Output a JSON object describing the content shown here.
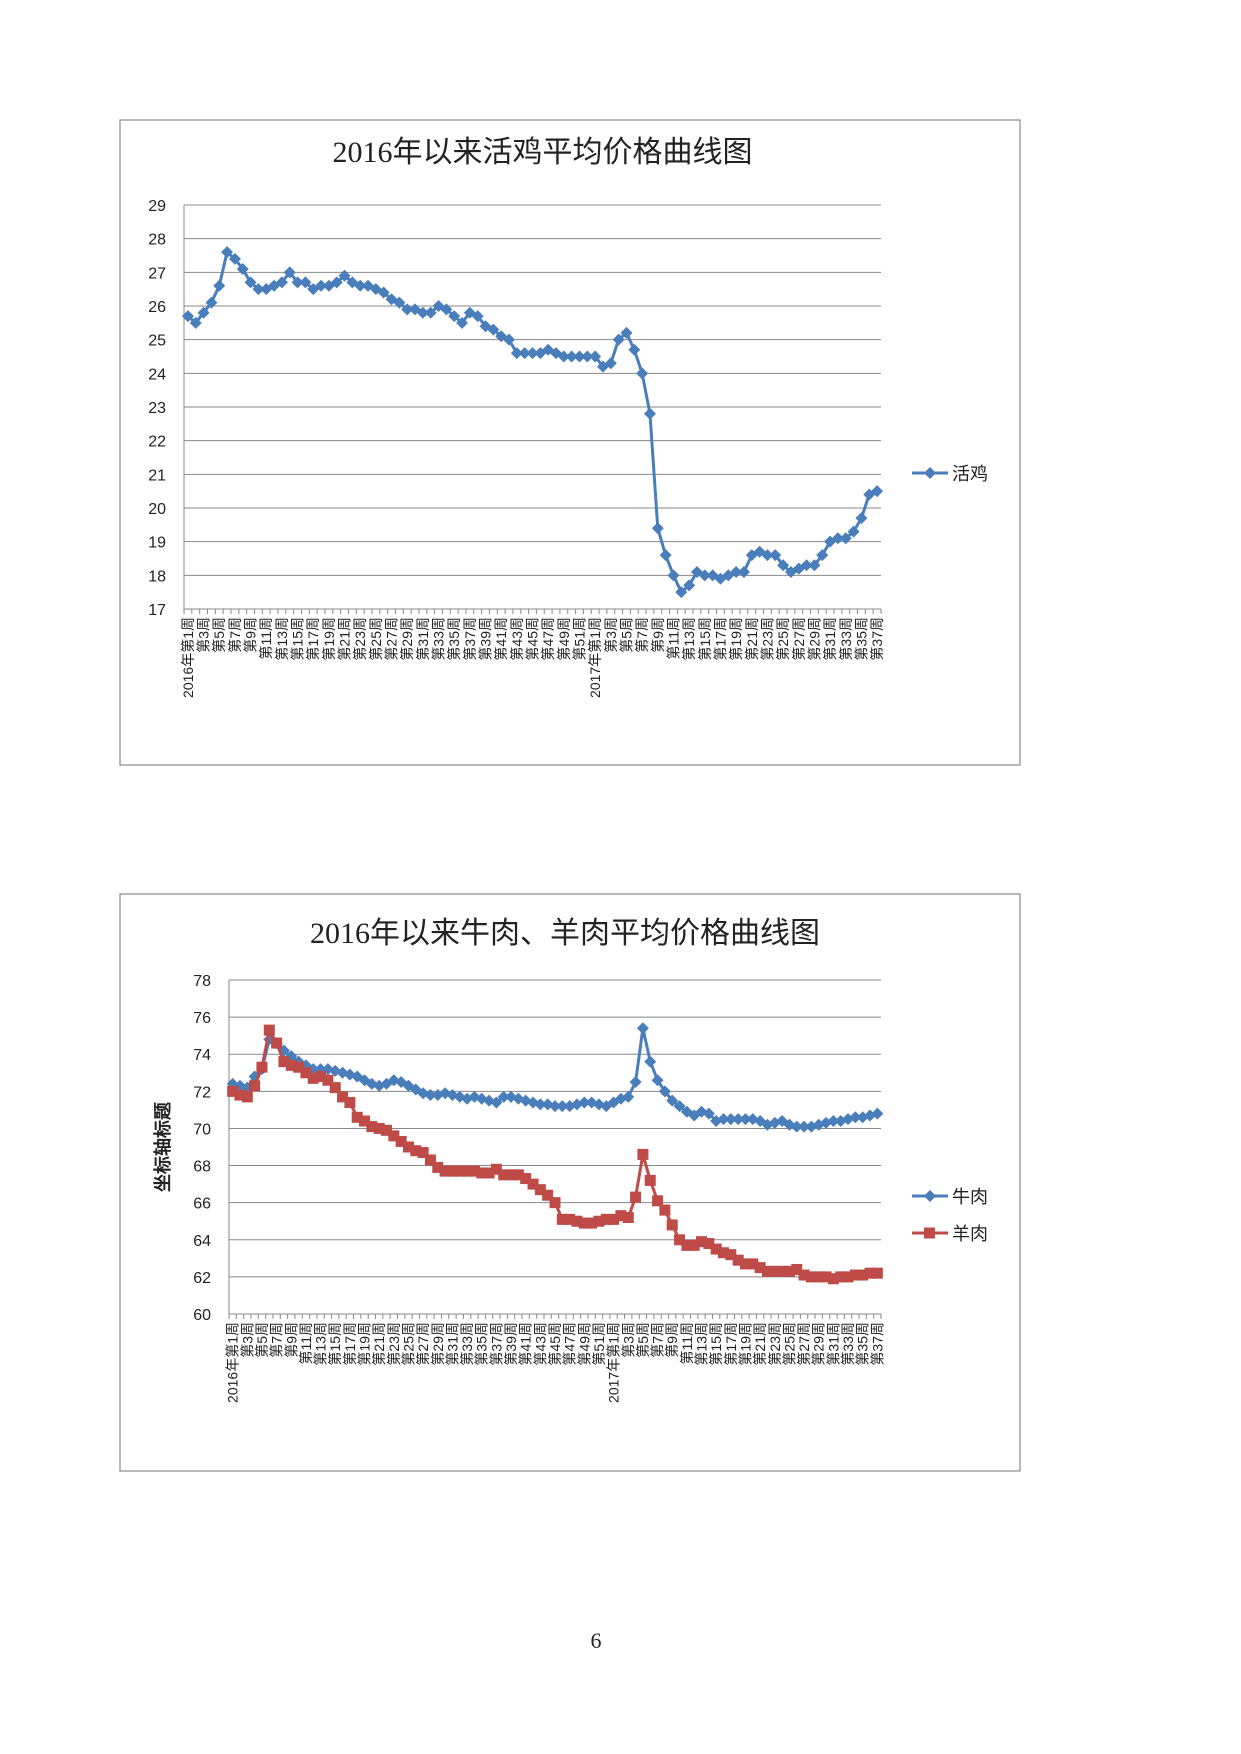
{
  "page_number": "6",
  "chart_data": [
    {
      "type": "line",
      "title": "2016年以来活鸡平均价格曲线图",
      "categories": [
        "2016年第1周",
        null,
        "第3周",
        null,
        "第5周",
        null,
        "第7周",
        null,
        "第9周",
        null,
        "第11周",
        null,
        "第13周",
        null,
        "第15周",
        null,
        "第17周",
        null,
        "第19周",
        null,
        "第21周",
        null,
        "第23周",
        null,
        "第25周",
        null,
        "第27周",
        null,
        "第29周",
        null,
        "第31周",
        null,
        "第33周",
        null,
        "第35周",
        null,
        "第37周",
        null,
        "第39周",
        null,
        "第41周",
        null,
        "第43周",
        null,
        "第45周",
        null,
        "第47周",
        null,
        "第49周",
        null,
        "第51周",
        null,
        "2017年第1周",
        null,
        "第3周",
        null,
        "第5周",
        null,
        "第7周",
        null,
        "第9周",
        null,
        "第11周",
        null,
        "第13周",
        null,
        "第15周",
        null,
        "第17周",
        null,
        "第19周",
        null,
        "第21周",
        null,
        "第23周",
        null,
        "第25周",
        null,
        "第27周",
        null,
        "第29周",
        null,
        "第31周",
        null,
        "第33周",
        null,
        "第35周",
        null,
        "第37周"
      ],
      "series": [
        {
          "name": "活鸡",
          "color": "#4a7ebb",
          "marker": "diamond",
          "values": [
            25.7,
            25.5,
            25.8,
            26.1,
            26.6,
            27.6,
            27.4,
            27.1,
            26.7,
            26.5,
            26.5,
            26.6,
            26.7,
            27.0,
            26.7,
            26.7,
            26.5,
            26.6,
            26.6,
            26.7,
            26.9,
            26.7,
            26.6,
            26.6,
            26.5,
            26.4,
            26.2,
            26.1,
            25.9,
            25.9,
            25.8,
            25.8,
            26.0,
            25.9,
            25.7,
            25.5,
            25.8,
            25.7,
            25.4,
            25.3,
            25.1,
            25.0,
            24.6,
            24.6,
            24.6,
            24.6,
            24.7,
            24.6,
            24.5,
            24.5,
            24.5,
            24.5,
            24.5,
            24.2,
            24.3,
            25.0,
            25.2,
            24.7,
            24.0,
            22.8,
            19.4,
            18.6,
            18.0,
            17.5,
            17.7,
            18.1,
            18.0,
            18.0,
            17.9,
            18.0,
            18.1,
            18.1,
            18.6,
            18.7,
            18.6,
            18.6,
            18.3,
            18.1,
            18.2,
            18.3,
            18.3,
            18.6,
            19.0,
            19.1,
            19.1,
            19.3,
            19.7,
            20.4,
            20.5
          ]
        }
      ],
      "ylim": [
        17,
        29
      ],
      "yticks": [
        17,
        18,
        19,
        20,
        21,
        22,
        23,
        24,
        25,
        26,
        27,
        28,
        29
      ],
      "grid": true,
      "legend": "right"
    },
    {
      "type": "line",
      "title": "2016年以来牛肉、羊肉平均价格曲线图",
      "y_label": "坐标轴标题",
      "categories": [
        "2016年第1周",
        null,
        "第3周",
        null,
        "第5周",
        null,
        "第7周",
        null,
        "第9周",
        null,
        "第11周",
        null,
        "第13周",
        null,
        "第15周",
        null,
        "第17周",
        null,
        "第19周",
        null,
        "第21周",
        null,
        "第23周",
        null,
        "第25周",
        null,
        "第27周",
        null,
        "第29周",
        null,
        "第31周",
        null,
        "第33周",
        null,
        "第35周",
        null,
        "第37周",
        null,
        "第39周",
        null,
        "第41周",
        null,
        "第43周",
        null,
        "第45周",
        null,
        "第47周",
        null,
        "第49周",
        null,
        "第51周",
        null,
        "2017年第1周",
        null,
        "第3周",
        null,
        "第5周",
        null,
        "第7周",
        null,
        "第9周",
        null,
        "第11周",
        null,
        "第13周",
        null,
        "第15周",
        null,
        "第17周",
        null,
        "第19周",
        null,
        "第21周",
        null,
        "第23周",
        null,
        "第25周",
        null,
        "第27周",
        null,
        "第29周",
        null,
        "第31周",
        null,
        "第33周",
        null,
        "第35周",
        null,
        "第37周"
      ],
      "series": [
        {
          "name": "牛肉",
          "color": "#4a7ebb",
          "marker": "diamond",
          "values": [
            72.4,
            72.3,
            72.2,
            72.8,
            73.2,
            74.8,
            74.6,
            74.2,
            73.9,
            73.6,
            73.4,
            73.2,
            73.2,
            73.2,
            73.1,
            73.0,
            72.9,
            72.8,
            72.6,
            72.4,
            72.3,
            72.4,
            72.6,
            72.5,
            72.3,
            72.1,
            71.9,
            71.8,
            71.8,
            71.9,
            71.8,
            71.7,
            71.6,
            71.7,
            71.6,
            71.5,
            71.4,
            71.7,
            71.7,
            71.6,
            71.5,
            71.4,
            71.3,
            71.3,
            71.2,
            71.2,
            71.2,
            71.3,
            71.4,
            71.4,
            71.3,
            71.2,
            71.4,
            71.6,
            71.7,
            72.5,
            75.4,
            73.6,
            72.6,
            72.0,
            71.5,
            71.2,
            70.9,
            70.7,
            70.9,
            70.8,
            70.4,
            70.5,
            70.5,
            70.5,
            70.5,
            70.5,
            70.4,
            70.2,
            70.3,
            70.4,
            70.2,
            70.1,
            70.1,
            70.1,
            70.2,
            70.3,
            70.4,
            70.4,
            70.5,
            70.6,
            70.6,
            70.7,
            70.8
          ]
        },
        {
          "name": "羊肉",
          "color": "#be4b48",
          "marker": "square",
          "values": [
            72.0,
            71.8,
            71.7,
            72.3,
            73.3,
            75.3,
            74.6,
            73.6,
            73.4,
            73.3,
            73.0,
            72.7,
            72.8,
            72.6,
            72.2,
            71.7,
            71.4,
            70.6,
            70.4,
            70.1,
            70.0,
            69.9,
            69.6,
            69.3,
            69.0,
            68.8,
            68.7,
            68.3,
            67.9,
            67.7,
            67.7,
            67.7,
            67.7,
            67.7,
            67.6,
            67.6,
            67.8,
            67.5,
            67.5,
            67.5,
            67.3,
            67.0,
            66.7,
            66.4,
            66.0,
            65.1,
            65.1,
            65.0,
            64.9,
            64.9,
            65.0,
            65.1,
            65.1,
            65.3,
            65.2,
            66.3,
            68.6,
            67.2,
            66.1,
            65.6,
            64.8,
            64.0,
            63.7,
            63.7,
            63.9,
            63.8,
            63.5,
            63.3,
            63.2,
            62.9,
            62.7,
            62.7,
            62.5,
            62.3,
            62.3,
            62.3,
            62.3,
            62.4,
            62.1,
            62.0,
            62.0,
            62.0,
            61.9,
            62.0,
            62.0,
            62.1,
            62.1,
            62.2,
            62.2
          ]
        }
      ],
      "ylim": [
        60,
        78
      ],
      "yticks": [
        60,
        62,
        64,
        66,
        68,
        70,
        72,
        74,
        76,
        78
      ],
      "grid": true,
      "legend": "right"
    }
  ]
}
